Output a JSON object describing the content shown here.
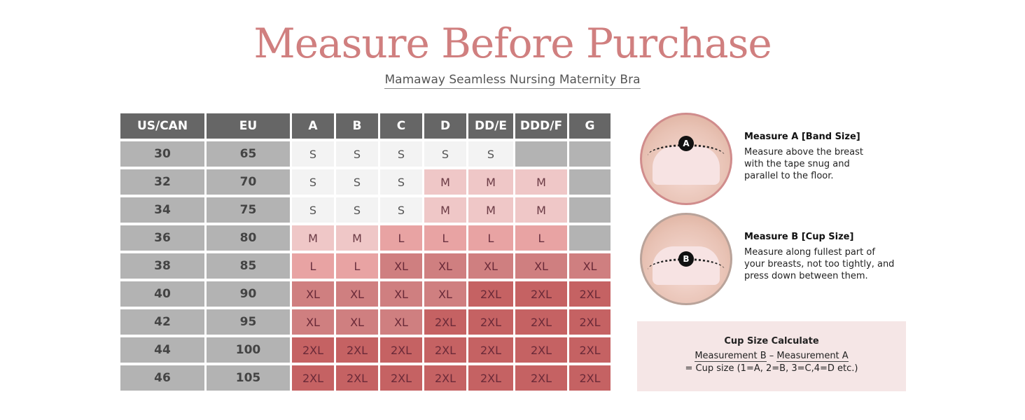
{
  "title": "Measure Before Purchase",
  "subtitle": "Mamaway Seamless Nursing Maternity Bra",
  "table": {
    "headers": [
      "US/CAN",
      "EU",
      "A",
      "B",
      "C",
      "D",
      "DD/E",
      "DDD/F",
      "G"
    ],
    "rows": [
      [
        "30",
        "65",
        "S",
        "S",
        "S",
        "S",
        "S",
        "",
        ""
      ],
      [
        "32",
        "70",
        "S",
        "S",
        "S",
        "M",
        "M",
        "M",
        ""
      ],
      [
        "34",
        "75",
        "S",
        "S",
        "S",
        "M",
        "M",
        "M",
        ""
      ],
      [
        "36",
        "80",
        "M",
        "M",
        "L",
        "L",
        "L",
        "L",
        ""
      ],
      [
        "38",
        "85",
        "L",
        "L",
        "XL",
        "XL",
        "XL",
        "XL",
        "XL"
      ],
      [
        "40",
        "90",
        "XL",
        "XL",
        "XL",
        "XL",
        "2XL",
        "2XL",
        "2XL"
      ],
      [
        "42",
        "95",
        "XL",
        "XL",
        "XL",
        "2XL",
        "2XL",
        "2XL",
        "2XL"
      ],
      [
        "44",
        "100",
        "2XL",
        "2XL",
        "2XL",
        "2XL",
        "2XL",
        "2XL",
        "2XL"
      ],
      [
        "46",
        "105",
        "2XL",
        "2XL",
        "2XL",
        "2XL",
        "2XL",
        "2XL",
        "2XL"
      ]
    ]
  },
  "measure_a": {
    "badge": "A",
    "title": "Measure A [Band Size]",
    "desc": "Measure above the breast with the tape snug and parallel to the floor."
  },
  "measure_b": {
    "badge": "B",
    "title": "Measure B [Cup Size]",
    "desc": "Measure along fullest part of your breasts, not too tightly, and press down between them."
  },
  "calc": {
    "title": "Cup Size Calculate",
    "term1": "Measurement B",
    "op": "–",
    "term2": "Measurement A",
    "result": "= Cup size (1=A, 2=B, 3=C,4=D etc.)"
  }
}
